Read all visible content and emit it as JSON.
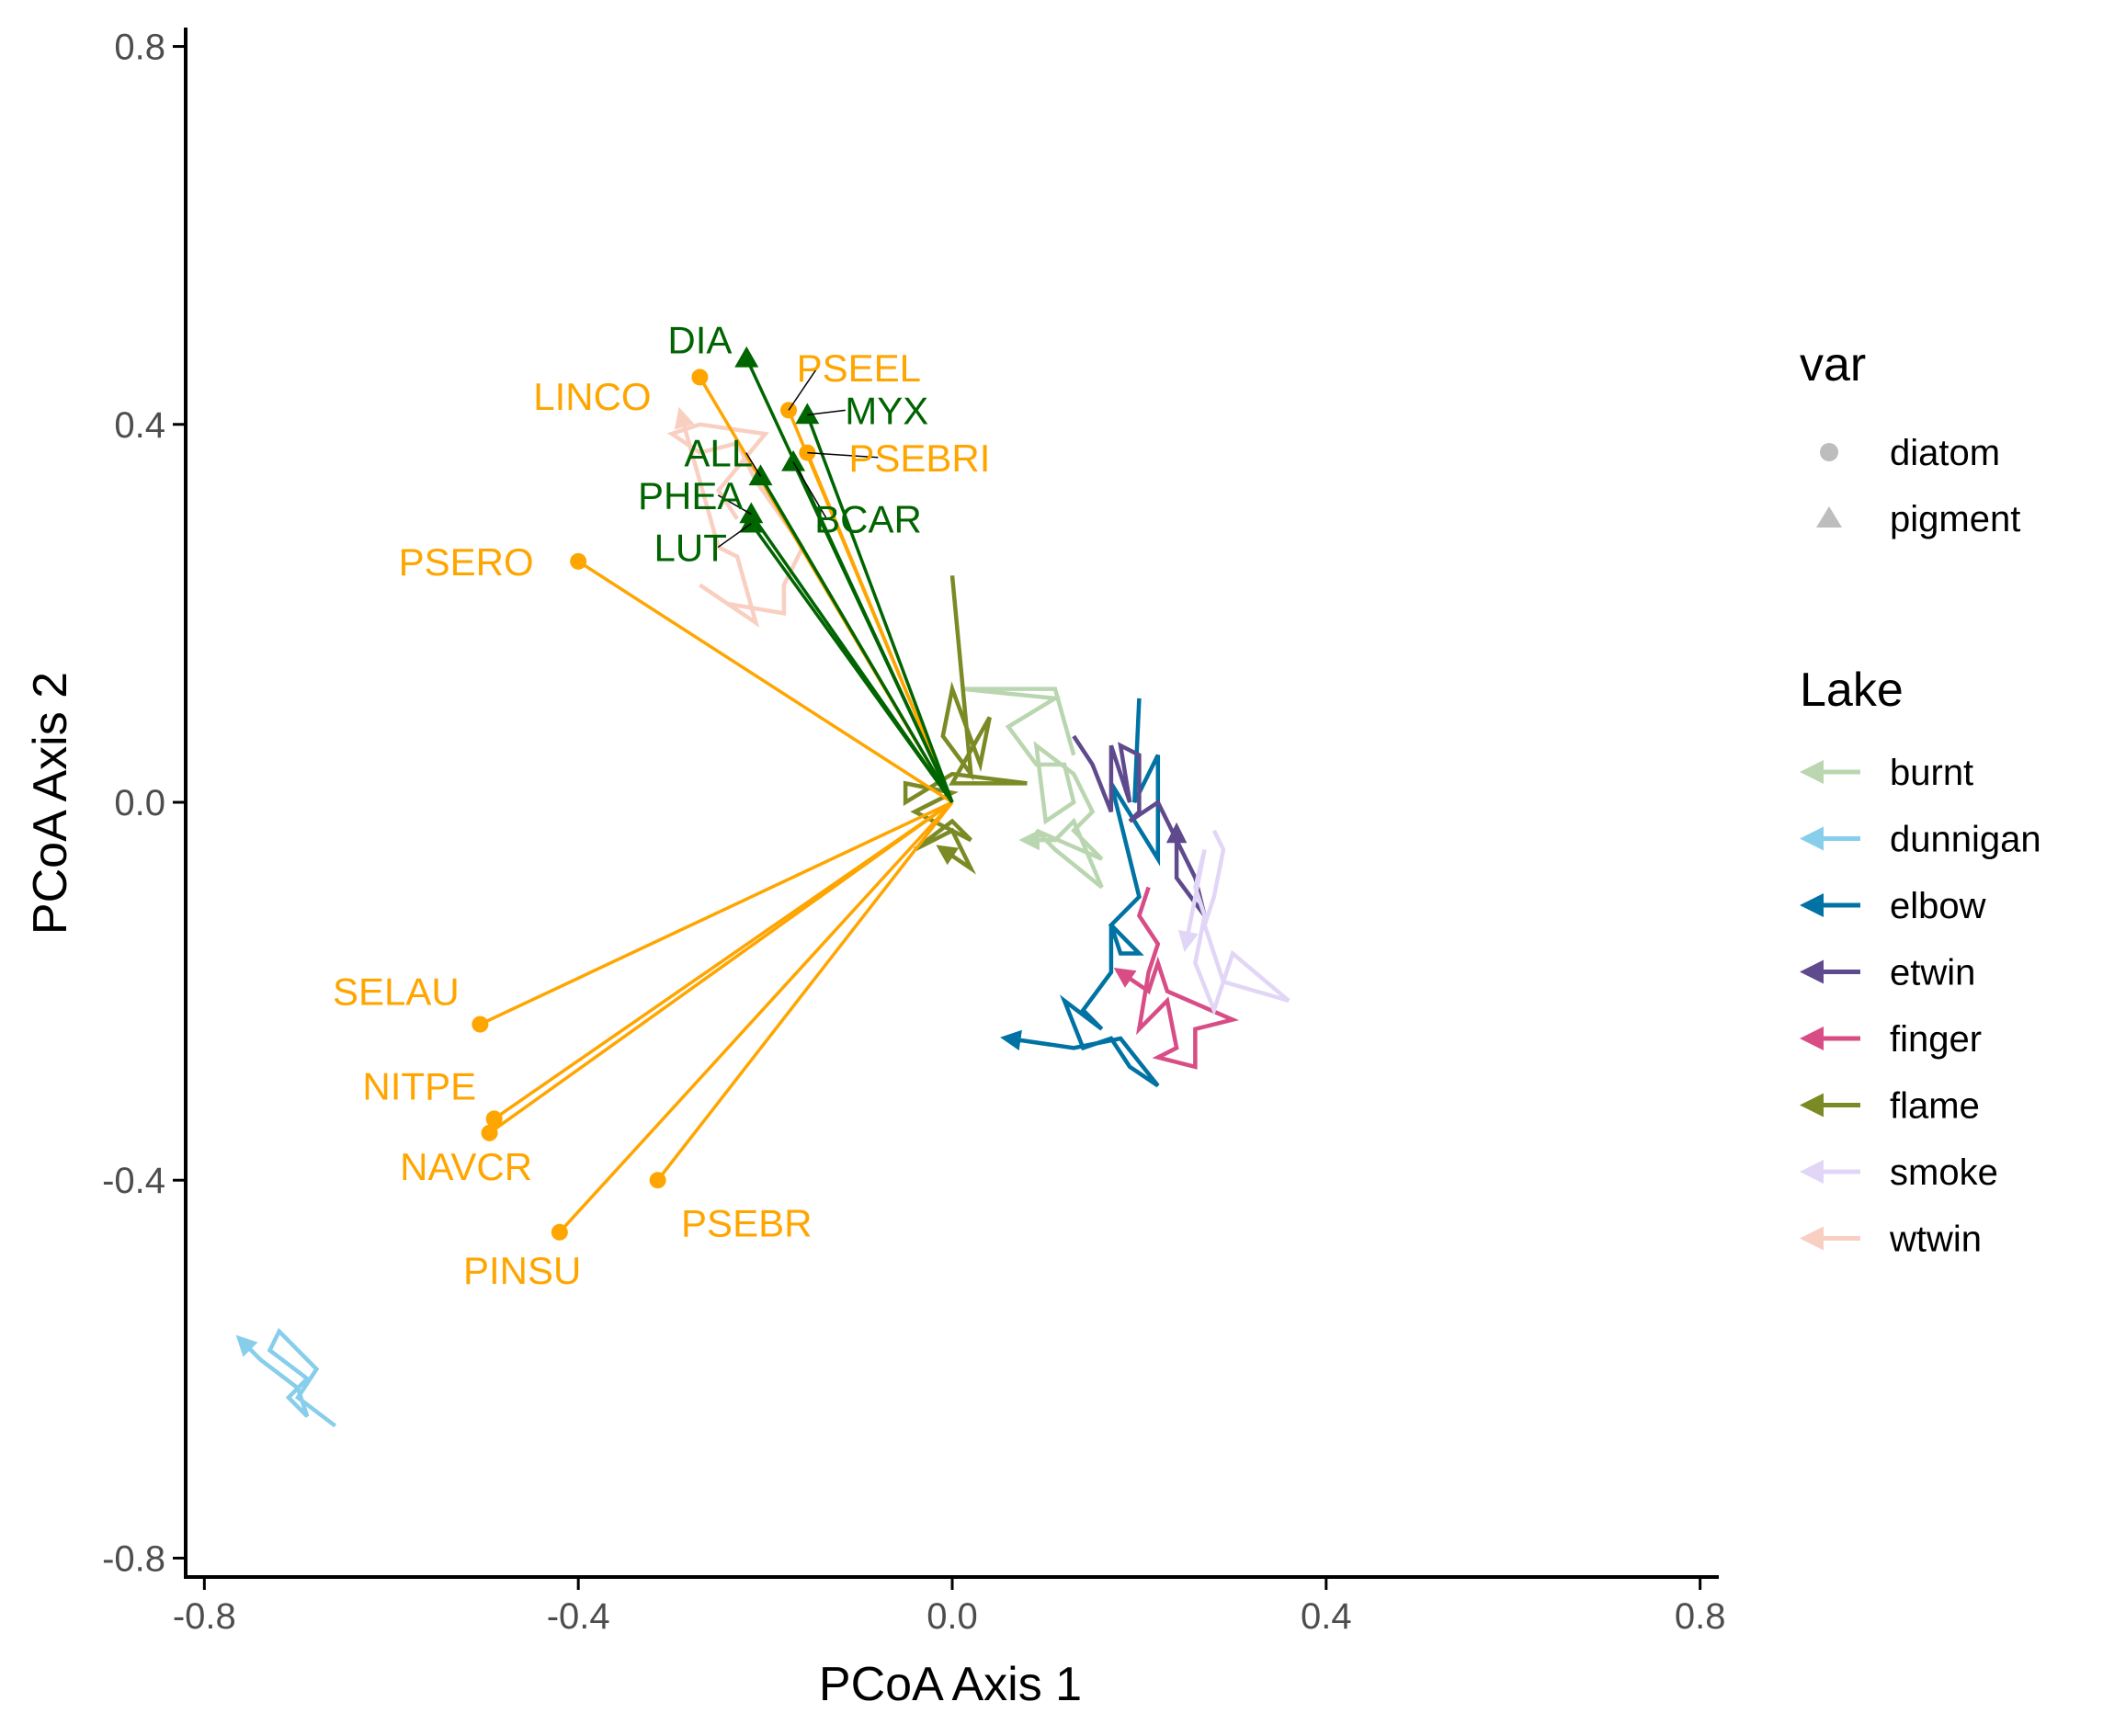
{
  "chart_data": {
    "type": "scatter",
    "xlabel": "PCoA Axis 1",
    "ylabel": "PCoA Axis 2",
    "xlim": [
      -0.82,
      0.82
    ],
    "ylim": [
      -0.82,
      0.82
    ],
    "xticks": [
      -0.8,
      -0.4,
      0.0,
      0.4,
      0.8
    ],
    "yticks": [
      -0.8,
      -0.4,
      0.0,
      0.4,
      0.8
    ],
    "xtick_labels": [
      "-0.8",
      "-0.4",
      "0.0",
      "0.4",
      "0.8"
    ],
    "ytick_labels": [
      "-0.8",
      "-0.4",
      "0.0",
      "0.4",
      "0.8"
    ],
    "grid": false,
    "legend_placement": "right",
    "var_legend": {
      "title": "var",
      "items": [
        {
          "label": "diatom",
          "shape": "circle"
        },
        {
          "label": "pigment",
          "shape": "triangle"
        }
      ]
    },
    "lake_legend": {
      "title": "Lake",
      "items": [
        {
          "label": "burnt",
          "color": "#b9d6b0"
        },
        {
          "label": "dunnigan",
          "color": "#87ceeb"
        },
        {
          "label": "elbow",
          "color": "#0072a3"
        },
        {
          "label": "etwin",
          "color": "#5e4a8c"
        },
        {
          "label": "finger",
          "color": "#d84d86"
        },
        {
          "label": "flame",
          "color": "#7b8a24"
        },
        {
          "label": "smoke",
          "color": "#e2d6f7"
        },
        {
          "label": "wtwin",
          "color": "#f9cfc2"
        }
      ]
    },
    "vectors": [
      {
        "name": "DIA",
        "group": "pigment",
        "x": -0.22,
        "y": 0.47,
        "label_x": -0.27,
        "label_y": 0.49,
        "leader": false
      },
      {
        "name": "MYX",
        "group": "pigment",
        "x": -0.155,
        "y": 0.41,
        "label_x": -0.07,
        "label_y": 0.415,
        "leader": true
      },
      {
        "name": "ALL",
        "group": "pigment",
        "x": -0.205,
        "y": 0.345,
        "label_x": -0.25,
        "label_y": 0.37,
        "leader": true
      },
      {
        "name": "BCAR",
        "group": "pigment",
        "x": -0.17,
        "y": 0.36,
        "label_x": -0.09,
        "label_y": 0.3,
        "leader": true
      },
      {
        "name": "PHEA",
        "group": "pigment",
        "x": -0.215,
        "y": 0.305,
        "label_x": -0.28,
        "label_y": 0.325,
        "leader": true
      },
      {
        "name": "LUT",
        "group": "pigment",
        "x": -0.215,
        "y": 0.295,
        "label_x": -0.28,
        "label_y": 0.27,
        "leader": true
      },
      {
        "name": "LINCO",
        "group": "diatom",
        "x": -0.27,
        "y": 0.45,
        "label_x": -0.385,
        "label_y": 0.43,
        "leader": false
      },
      {
        "name": "PSEEL",
        "group": "diatom",
        "x": -0.175,
        "y": 0.415,
        "label_x": -0.1,
        "label_y": 0.46,
        "leader": true
      },
      {
        "name": "PSEBRI",
        "group": "diatom",
        "x": -0.155,
        "y": 0.37,
        "label_x": -0.035,
        "label_y": 0.365,
        "leader": true
      },
      {
        "name": "PSERO",
        "group": "diatom",
        "x": -0.4,
        "y": 0.255,
        "label_x": -0.52,
        "label_y": 0.255,
        "leader": false
      },
      {
        "name": "SELAU",
        "group": "diatom",
        "x": -0.505,
        "y": -0.235,
        "label_x": -0.595,
        "label_y": -0.2,
        "leader": false
      },
      {
        "name": "NITPE",
        "group": "diatom",
        "x": -0.49,
        "y": -0.335,
        "label_x": -0.57,
        "label_y": -0.3,
        "leader": false
      },
      {
        "name": "NAVCR",
        "group": "diatom",
        "x": -0.495,
        "y": -0.35,
        "label_x": -0.52,
        "label_y": -0.385,
        "leader": false
      },
      {
        "name": "PINSU",
        "group": "diatom",
        "x": -0.42,
        "y": -0.455,
        "label_x": -0.46,
        "label_y": -0.495,
        "leader": false
      },
      {
        "name": "PSEBR",
        "group": "diatom",
        "x": -0.315,
        "y": -0.4,
        "label_x": -0.22,
        "label_y": -0.445,
        "leader": false
      }
    ],
    "series": [
      {
        "name": "burnt",
        "color": "#b9d6b0",
        "points": [
          [
            0.13,
            0.05
          ],
          [
            0.11,
            0.12
          ],
          [
            0.01,
            0.12
          ],
          [
            0.11,
            0.11
          ],
          [
            0.06,
            0.08
          ],
          [
            0.09,
            0.04
          ],
          [
            0.12,
            0.04
          ],
          [
            0.13,
            0.0
          ],
          [
            0.1,
            -0.02
          ],
          [
            0.09,
            0.06
          ],
          [
            0.13,
            0.03
          ],
          [
            0.15,
            -0.01
          ],
          [
            0.13,
            -0.03
          ],
          [
            0.16,
            -0.06
          ],
          [
            0.09,
            -0.03
          ],
          [
            0.11,
            -0.05
          ],
          [
            0.16,
            -0.09
          ],
          [
            0.13,
            -0.02
          ],
          [
            0.11,
            -0.04
          ],
          [
            0.08,
            -0.04
          ]
        ]
      },
      {
        "name": "dunnigan",
        "color": "#87ceeb",
        "points": [
          [
            -0.66,
            -0.66
          ],
          [
            -0.7,
            -0.63
          ],
          [
            -0.68,
            -0.6
          ],
          [
            -0.72,
            -0.56
          ],
          [
            -0.73,
            -0.58
          ],
          [
            -0.69,
            -0.61
          ],
          [
            -0.71,
            -0.63
          ],
          [
            -0.69,
            -0.65
          ],
          [
            -0.7,
            -0.62
          ],
          [
            -0.74,
            -0.59
          ],
          [
            -0.76,
            -0.57
          ]
        ]
      },
      {
        "name": "elbow",
        "color": "#0072a3",
        "points": [
          [
            0.2,
            0.11
          ],
          [
            0.195,
            0.0
          ],
          [
            0.22,
            0.05
          ],
          [
            0.22,
            -0.06
          ],
          [
            0.17,
            0.02
          ],
          [
            0.2,
            -0.1
          ],
          [
            0.17,
            -0.13
          ],
          [
            0.2,
            -0.16
          ],
          [
            0.18,
            -0.16
          ],
          [
            0.17,
            -0.13
          ],
          [
            0.17,
            -0.18
          ],
          [
            0.14,
            -0.22
          ],
          [
            0.16,
            -0.24
          ],
          [
            0.12,
            -0.21
          ],
          [
            0.14,
            -0.26
          ],
          [
            0.17,
            -0.25
          ],
          [
            0.19,
            -0.28
          ],
          [
            0.22,
            -0.3
          ],
          [
            0.18,
            -0.25
          ],
          [
            0.13,
            -0.26
          ],
          [
            0.06,
            -0.25
          ]
        ]
      },
      {
        "name": "etwin",
        "color": "#5e4a8c",
        "points": [
          [
            0.13,
            0.07
          ],
          [
            0.15,
            0.04
          ],
          [
            0.17,
            -0.01
          ],
          [
            0.17,
            0.06
          ],
          [
            0.19,
            0.0
          ],
          [
            0.18,
            0.06
          ],
          [
            0.2,
            0.05
          ],
          [
            0.2,
            -0.01
          ],
          [
            0.19,
            -0.02
          ],
          [
            0.22,
            0.0
          ],
          [
            0.24,
            -0.04
          ],
          [
            0.26,
            -0.08
          ],
          [
            0.27,
            -0.12
          ],
          [
            0.24,
            -0.08
          ],
          [
            0.24,
            -0.03
          ]
        ]
      },
      {
        "name": "finger",
        "color": "#d84d86",
        "points": [
          [
            0.21,
            -0.09
          ],
          [
            0.2,
            -0.12
          ],
          [
            0.22,
            -0.15
          ],
          [
            0.21,
            -0.18
          ],
          [
            0.2,
            -0.24
          ],
          [
            0.23,
            -0.21
          ],
          [
            0.24,
            -0.26
          ],
          [
            0.22,
            -0.27
          ],
          [
            0.26,
            -0.28
          ],
          [
            0.26,
            -0.24
          ],
          [
            0.3,
            -0.23
          ],
          [
            0.23,
            -0.2
          ],
          [
            0.22,
            -0.17
          ],
          [
            0.21,
            -0.2
          ],
          [
            0.18,
            -0.18
          ]
        ]
      },
      {
        "name": "flame",
        "color": "#7b8a24",
        "points": [
          [
            0.0,
            0.24
          ],
          [
            0.02,
            0.03
          ],
          [
            -0.01,
            0.07
          ],
          [
            0.0,
            0.12
          ],
          [
            0.03,
            0.04
          ],
          [
            0.04,
            0.09
          ],
          [
            0.0,
            0.02
          ],
          [
            0.08,
            0.02
          ],
          [
            0.0,
            0.03
          ],
          [
            -0.05,
            0.0
          ],
          [
            -0.05,
            0.02
          ],
          [
            0.0,
            0.01
          ],
          [
            -0.04,
            -0.01
          ],
          [
            0.02,
            -0.04
          ],
          [
            0.0,
            -0.02
          ],
          [
            -0.04,
            -0.05
          ],
          [
            0.0,
            -0.03
          ],
          [
            0.02,
            -0.07
          ],
          [
            -0.01,
            -0.05
          ]
        ]
      },
      {
        "name": "smoke",
        "color": "#e2d6f7",
        "points": [
          [
            0.28,
            -0.03
          ],
          [
            0.29,
            -0.05
          ],
          [
            0.28,
            -0.1
          ],
          [
            0.27,
            -0.13
          ],
          [
            0.28,
            -0.16
          ],
          [
            0.29,
            -0.19
          ],
          [
            0.36,
            -0.21
          ],
          [
            0.3,
            -0.16
          ],
          [
            0.28,
            -0.22
          ],
          [
            0.26,
            -0.17
          ],
          [
            0.27,
            -0.12
          ],
          [
            0.26,
            -0.09
          ],
          [
            0.27,
            -0.05
          ],
          [
            0.25,
            -0.15
          ]
        ]
      },
      {
        "name": "wtwin",
        "color": "#f9cfc2",
        "points": [
          [
            -0.23,
            0.3
          ],
          [
            -0.25,
            0.33
          ],
          [
            -0.2,
            0.39
          ],
          [
            -0.27,
            0.4
          ],
          [
            -0.3,
            0.39
          ],
          [
            -0.27,
            0.37
          ],
          [
            -0.23,
            0.38
          ],
          [
            -0.21,
            0.34
          ],
          [
            -0.16,
            0.27
          ],
          [
            -0.18,
            0.23
          ],
          [
            -0.18,
            0.2
          ],
          [
            -0.24,
            0.21
          ],
          [
            -0.27,
            0.23
          ],
          [
            -0.21,
            0.19
          ],
          [
            -0.23,
            0.26
          ],
          [
            -0.25,
            0.27
          ],
          [
            -0.29,
            0.41
          ]
        ]
      }
    ]
  }
}
